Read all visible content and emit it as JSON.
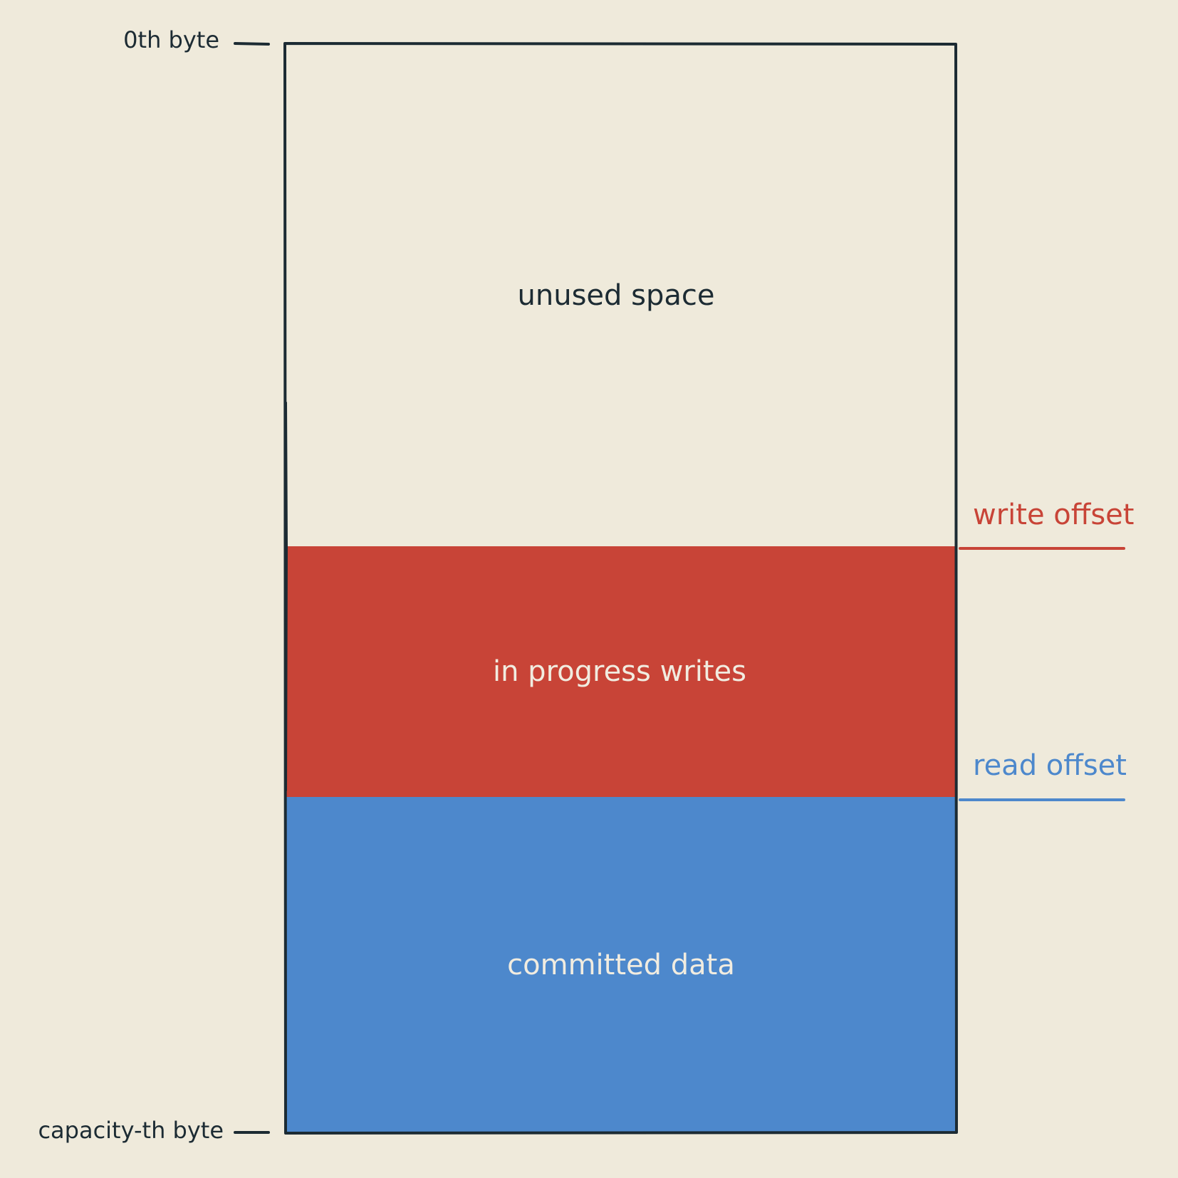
{
  "diagram": {
    "top_marker_label": "0th byte",
    "bottom_marker_label": "capacity-th byte",
    "regions": {
      "unused": {
        "label": "unused space",
        "fill": "#efeadb",
        "text_color": "#1c2b33"
      },
      "in_progress": {
        "label": "in progress writes",
        "fill": "#c84437",
        "text_color": "#f1ece0"
      },
      "committed": {
        "label": "committed data",
        "fill": "#4d88cc",
        "text_color": "#f1ece0"
      }
    },
    "write_offset": {
      "label": "write offset",
      "color": "#c84437"
    },
    "read_offset": {
      "label": "read offset",
      "color": "#4d88cc"
    },
    "outline_color": "#1c2b33"
  }
}
